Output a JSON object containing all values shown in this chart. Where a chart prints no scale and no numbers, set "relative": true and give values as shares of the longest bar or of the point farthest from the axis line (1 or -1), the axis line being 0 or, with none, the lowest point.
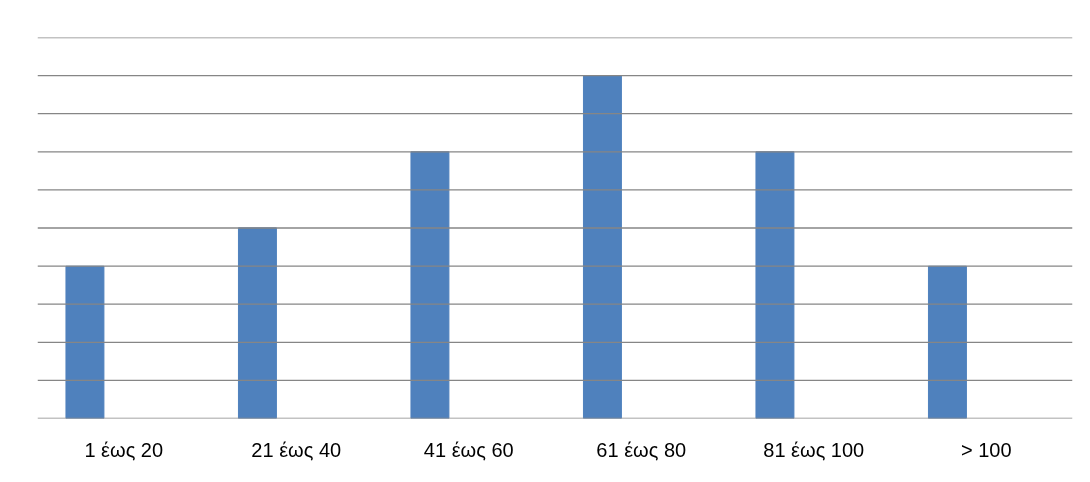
{
  "chart_data": {
    "type": "bar",
    "relative": true,
    "categories": [
      "1 έως 20",
      "21 έως 40",
      "41 έως 60",
      "61 έως 80",
      "81 έως 100",
      "> 100"
    ],
    "values": [
      0.444,
      0.556,
      0.778,
      1,
      0.778,
      0.444
    ],
    "color": "#4f81bd",
    "grid": "y"
  }
}
